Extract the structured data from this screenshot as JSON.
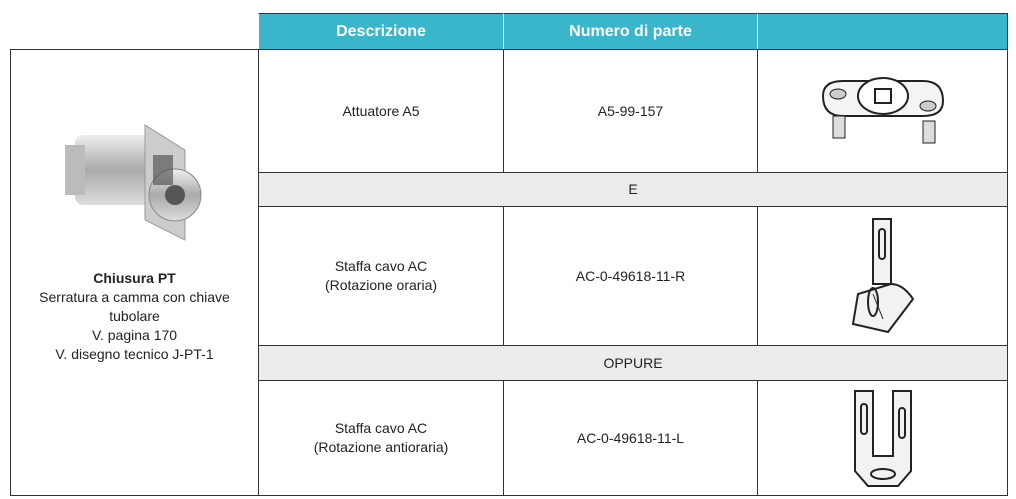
{
  "table": {
    "header": [
      "Descrizione",
      "Numero di parte"
    ],
    "product": {
      "name": "Chiusura PT",
      "lines": [
        "Serratura a camma con chiave tubolare",
        "V. pagina 170",
        "V. disegno tecnico J-PT-1"
      ]
    },
    "rows": [
      {
        "description": [
          "Attuatore A5"
        ],
        "part_number": "A5-99-157"
      },
      {
        "separator": "E"
      },
      {
        "description": [
          "Staffa cavo AC",
          "(Rotazione oraria)"
        ],
        "part_number": "AC-0-49618-11-R"
      },
      {
        "separator": "OPPURE"
      },
      {
        "description": [
          "Staffa cavo AC",
          "(Rotazione antioraria)"
        ],
        "part_number": "AC-0-49618-11-L"
      }
    ]
  }
}
